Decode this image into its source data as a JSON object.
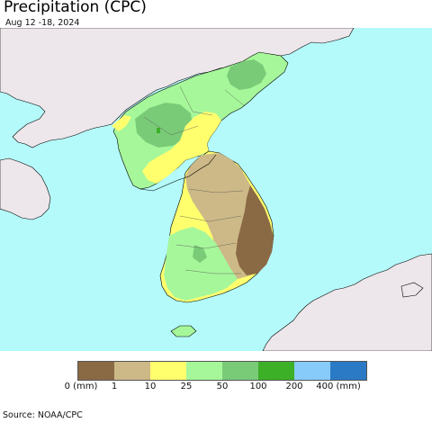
{
  "header": {
    "title": "Precipitation (CPC)",
    "subtitle": "Aug 12 -18, 2024"
  },
  "colors": {
    "ocean": "#b4fafa",
    "land_outside": "#ede6ea",
    "dark_brown": "#8a6a45",
    "tan": "#cdb987",
    "yellow": "#ffff6e",
    "light_green": "#a6f79a",
    "green": "#7acb78",
    "bright_green": "#3cb027",
    "border_line": "#000000"
  },
  "legend": {
    "unit_label": "(mm)",
    "items": [
      {
        "color": "#8a6a45",
        "label": "0"
      },
      {
        "color": "#cdb987",
        "label": "1"
      },
      {
        "color": "#ffff6e",
        "label": "10"
      },
      {
        "color": "#a6f79a",
        "label": "25"
      },
      {
        "color": "#7acb78",
        "label": "50"
      },
      {
        "color": "#3cb027",
        "label": "100"
      },
      {
        "color": "#87cbfa",
        "label": "200"
      },
      {
        "color": "#2b7ac6",
        "label": "400"
      }
    ],
    "tick_0": "0 (mm)",
    "tick_1": "1",
    "tick_10": "10",
    "tick_25": "25",
    "tick_50": "50",
    "tick_100": "100",
    "tick_200": "200",
    "tick_400": "400 (mm)"
  },
  "footer": {
    "source": "Source: NOAA/CPC"
  }
}
